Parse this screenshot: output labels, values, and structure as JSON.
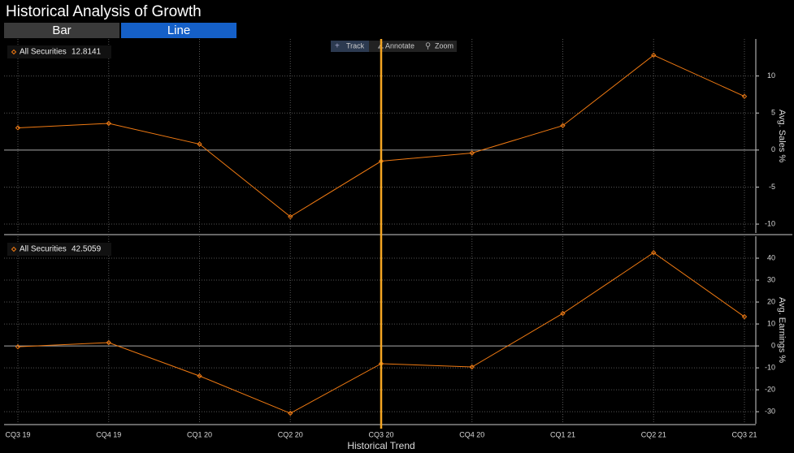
{
  "header": {
    "title": "Historical Analysis of Growth",
    "tabs": [
      "Bar",
      "Line"
    ],
    "tools": [
      "Track",
      "Annotate",
      "Zoom"
    ]
  },
  "chart_data": [
    {
      "type": "line",
      "y_axis_label": "Avg. Sales %",
      "series": [
        {
          "name": "All Securities",
          "color": "#f07a12",
          "values": [
            3.0,
            3.6,
            0.8,
            -9.0,
            -1.5,
            -0.4,
            3.3,
            12.8141,
            7.25
          ]
        }
      ],
      "ylim": [
        -11.2,
        15
      ],
      "yticks": [
        -10,
        -5,
        0,
        5,
        10
      ],
      "grid": true
    },
    {
      "type": "line",
      "y_axis_label": "Avg. Earnings %",
      "x_axis_label": "Historical Trend",
      "categories": [
        "CQ3 19",
        "CQ4 19",
        "CQ1 20",
        "CQ2 20",
        "CQ3 20",
        "CQ4 20",
        "CQ1 21",
        "CQ2 21",
        "CQ3 21"
      ],
      "series": [
        {
          "name": "All Securities",
          "color": "#f07a12",
          "values": [
            -0.4,
            1.5,
            -13.7,
            -30.7,
            -8.1,
            -9.6,
            14.8,
            42.5059,
            13.3
          ]
        }
      ],
      "ylim": [
        -35.5,
        50
      ],
      "yticks": [
        -30,
        -20,
        -10,
        0,
        10,
        20,
        30,
        40
      ],
      "grid": true
    }
  ]
}
